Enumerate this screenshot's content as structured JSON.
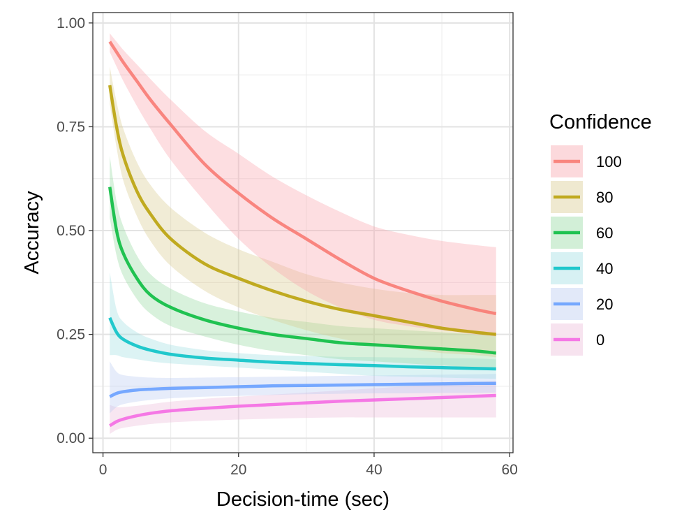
{
  "chart_data": {
    "type": "line",
    "xlabel": "Decision-time (sec)",
    "ylabel": "Accuracy",
    "xlim": [
      -1.5,
      60.5
    ],
    "ylim": [
      -0.035,
      1.025
    ],
    "x_ticks": [
      0,
      20,
      40,
      60
    ],
    "x_tick_labels": [
      "0",
      "20",
      "40",
      "60"
    ],
    "y_ticks": [
      0,
      0.25,
      0.5,
      0.75,
      1.0
    ],
    "y_tick_labels": [
      "0.00",
      "0.25",
      "0.50",
      "0.75",
      "1.00"
    ],
    "grid": true,
    "legend": {
      "title": "Confidence",
      "position": "right"
    },
    "x": [
      1,
      2,
      3,
      5,
      7,
      10,
      15,
      20,
      25,
      30,
      35,
      40,
      45,
      50,
      55,
      58
    ],
    "series": [
      {
        "name": "100",
        "color": "#F8766D",
        "fill": "#F8A0A8",
        "values": [
          0.955,
          0.93,
          0.905,
          0.86,
          0.815,
          0.755,
          0.66,
          0.59,
          0.53,
          0.48,
          0.43,
          0.385,
          0.355,
          0.33,
          0.31,
          0.3
        ],
        "lower": [
          0.93,
          0.895,
          0.86,
          0.8,
          0.745,
          0.67,
          0.57,
          0.48,
          0.41,
          0.355,
          0.315,
          0.285,
          0.27,
          0.26,
          0.25,
          0.245
        ],
        "upper": [
          0.975,
          0.955,
          0.935,
          0.9,
          0.865,
          0.815,
          0.74,
          0.685,
          0.63,
          0.585,
          0.545,
          0.51,
          0.49,
          0.475,
          0.465,
          0.46
        ]
      },
      {
        "name": "80",
        "color": "#B79F00",
        "fill": "#D8C98A",
        "values": [
          0.85,
          0.75,
          0.68,
          0.595,
          0.54,
          0.48,
          0.42,
          0.385,
          0.355,
          0.33,
          0.31,
          0.295,
          0.28,
          0.265,
          0.255,
          0.25
        ],
        "lower": [
          0.805,
          0.7,
          0.62,
          0.535,
          0.475,
          0.415,
          0.355,
          0.315,
          0.285,
          0.26,
          0.24,
          0.225,
          0.215,
          0.205,
          0.2,
          0.195
        ],
        "upper": [
          0.895,
          0.81,
          0.745,
          0.665,
          0.61,
          0.555,
          0.495,
          0.455,
          0.425,
          0.395,
          0.375,
          0.36,
          0.35,
          0.345,
          0.345,
          0.345
        ]
      },
      {
        "name": "60",
        "color": "#00BA38",
        "fill": "#8FD69B",
        "values": [
          0.605,
          0.5,
          0.445,
          0.385,
          0.345,
          0.315,
          0.285,
          0.265,
          0.25,
          0.24,
          0.23,
          0.225,
          0.22,
          0.215,
          0.21,
          0.205
        ],
        "lower": [
          0.53,
          0.44,
          0.39,
          0.335,
          0.3,
          0.27,
          0.245,
          0.225,
          0.21,
          0.2,
          0.19,
          0.185,
          0.18,
          0.175,
          0.17,
          0.17
        ],
        "upper": [
          0.68,
          0.57,
          0.51,
          0.44,
          0.395,
          0.36,
          0.325,
          0.305,
          0.29,
          0.28,
          0.27,
          0.265,
          0.26,
          0.255,
          0.25,
          0.25
        ]
      },
      {
        "name": "40",
        "color": "#00BFC4",
        "fill": "#9ADCE0",
        "values": [
          0.29,
          0.255,
          0.238,
          0.222,
          0.212,
          0.202,
          0.193,
          0.188,
          0.183,
          0.18,
          0.177,
          0.175,
          0.172,
          0.17,
          0.168,
          0.167
        ],
        "lower": [
          0.2,
          0.2,
          0.195,
          0.19,
          0.185,
          0.18,
          0.175,
          0.17,
          0.165,
          0.16,
          0.155,
          0.15,
          0.148,
          0.146,
          0.144,
          0.143
        ],
        "upper": [
          0.4,
          0.31,
          0.28,
          0.255,
          0.24,
          0.225,
          0.212,
          0.205,
          0.2,
          0.198,
          0.196,
          0.195,
          0.194,
          0.193,
          0.192,
          0.19
        ]
      },
      {
        "name": "20",
        "color": "#619CFF",
        "fill": "#B7C9F0",
        "values": [
          0.1,
          0.108,
          0.112,
          0.116,
          0.118,
          0.12,
          0.122,
          0.124,
          0.126,
          0.127,
          0.128,
          0.129,
          0.13,
          0.131,
          0.132,
          0.132
        ],
        "lower": [
          0.06,
          0.075,
          0.082,
          0.088,
          0.092,
          0.096,
          0.1,
          0.102,
          0.104,
          0.106,
          0.107,
          0.108,
          0.108,
          0.109,
          0.109,
          0.11
        ],
        "upper": [
          0.185,
          0.16,
          0.152,
          0.148,
          0.146,
          0.145,
          0.146,
          0.147,
          0.148,
          0.149,
          0.15,
          0.151,
          0.152,
          0.153,
          0.154,
          0.155
        ]
      },
      {
        "name": "0",
        "color": "#F564E3",
        "fill": "#EBB8D8",
        "values": [
          0.03,
          0.04,
          0.046,
          0.054,
          0.06,
          0.066,
          0.072,
          0.077,
          0.081,
          0.085,
          0.089,
          0.092,
          0.095,
          0.098,
          0.101,
          0.103
        ],
        "lower": [
          0.01,
          0.02,
          0.025,
          0.03,
          0.034,
          0.038,
          0.042,
          0.045,
          0.047,
          0.049,
          0.05,
          0.05,
          0.05,
          0.05,
          0.05,
          0.05
        ],
        "upper": [
          0.08,
          0.075,
          0.075,
          0.078,
          0.082,
          0.088,
          0.095,
          0.1,
          0.105,
          0.11,
          0.115,
          0.12,
          0.125,
          0.13,
          0.135,
          0.138
        ]
      }
    ]
  }
}
